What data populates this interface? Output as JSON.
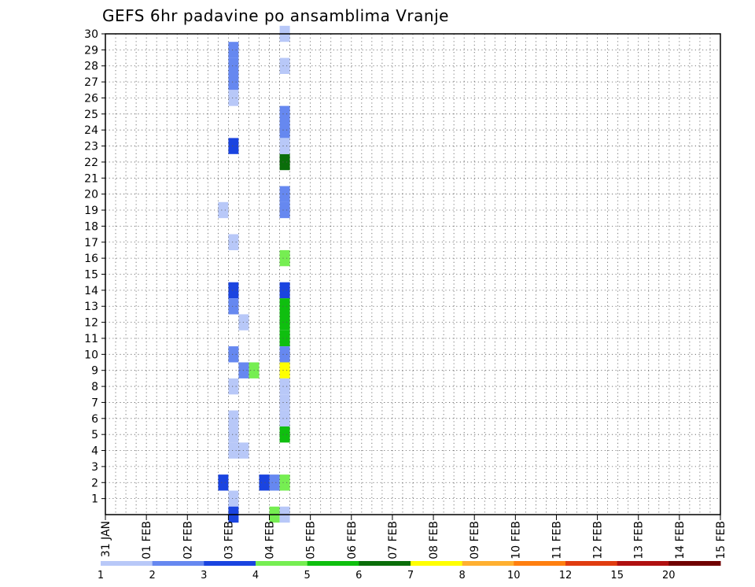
{
  "chart_data": {
    "type": "heatmap",
    "title": "GEFS 6hr padavine po ansamblima Vranje",
    "xlabel": "",
    "ylabel": "",
    "x_ticks": [
      "31 JAN",
      "01 FEB",
      "02 FEB",
      "03 FEB",
      "04 FEB",
      "05 FEB",
      "06 FEB",
      "07 FEB",
      "08 FEB",
      "09 FEB",
      "10 FEB",
      "11 FEB",
      "12 FEB",
      "13 FEB",
      "14 FEB",
      "15 FEB"
    ],
    "xlim": [
      "31 JAN 00",
      "15 FEB 00"
    ],
    "y_ticks": [
      1,
      2,
      3,
      4,
      5,
      6,
      7,
      8,
      9,
      10,
      11,
      12,
      13,
      14,
      15,
      16,
      17,
      18,
      19,
      20,
      21,
      22,
      23,
      24,
      25,
      26,
      27,
      28,
      29,
      30
    ],
    "ylim": [
      0,
      30
    ],
    "time_step_hours": 6,
    "grid": true,
    "colorbar": {
      "labels": [
        "1",
        "2",
        "3",
        "4",
        "5",
        "6",
        "7",
        "8",
        "10",
        "12",
        "15",
        "20"
      ],
      "colors": [
        "#b8c8f8",
        "#6688f0",
        "#1a44e0",
        "#76ee52",
        "#0fbf0f",
        "#0a6e0a",
        "#ffff00",
        "#ffb030",
        "#ff7f10",
        "#e03c10",
        "#b01010",
        "#700000"
      ]
    },
    "cells": [
      {
        "x": "03 FEB 00",
        "y": 29,
        "v": 2
      },
      {
        "x": "03 FEB 00",
        "y": 28,
        "v": 2
      },
      {
        "x": "03 FEB 00",
        "y": 27,
        "v": 2
      },
      {
        "x": "03 FEB 00",
        "y": 26,
        "v": 1
      },
      {
        "x": "03 FEB 00",
        "y": 23,
        "v": 3
      },
      {
        "x": "03 FEB 00",
        "y": 17,
        "v": 1
      },
      {
        "x": "03 FEB 00",
        "y": 14,
        "v": 3
      },
      {
        "x": "03 FEB 00",
        "y": 13,
        "v": 2
      },
      {
        "x": "03 FEB 00",
        "y": 10,
        "v": 2
      },
      {
        "x": "03 FEB 00",
        "y": 8,
        "v": 1
      },
      {
        "x": "03 FEB 00",
        "y": 6,
        "v": 1
      },
      {
        "x": "03 FEB 00",
        "y": 5,
        "v": 1
      },
      {
        "x": "03 FEB 00",
        "y": 4,
        "v": 1
      },
      {
        "x": "03 FEB 00",
        "y": 1,
        "v": 1
      },
      {
        "x": "03 FEB 00",
        "y": 0,
        "v": 3
      },
      {
        "x": "02 FEB 18",
        "y": 19,
        "v": 1
      },
      {
        "x": "02 FEB 18",
        "y": 2,
        "v": 3
      },
      {
        "x": "03 FEB 06",
        "y": 12,
        "v": 1
      },
      {
        "x": "03 FEB 06",
        "y": 9,
        "v": 2
      },
      {
        "x": "03 FEB 06",
        "y": 4,
        "v": 1
      },
      {
        "x": "03 FEB 12",
        "y": 9,
        "v": 4
      },
      {
        "x": "03 FEB 18",
        "y": 2,
        "v": 3
      },
      {
        "x": "04 FEB 00",
        "y": 2,
        "v": 2
      },
      {
        "x": "04 FEB 00",
        "y": 0,
        "v": 4
      },
      {
        "x": "04 FEB 06",
        "y": 30,
        "v": 1
      },
      {
        "x": "04 FEB 06",
        "y": 28,
        "v": 1
      },
      {
        "x": "04 FEB 06",
        "y": 25,
        "v": 2
      },
      {
        "x": "04 FEB 06",
        "y": 24,
        "v": 2
      },
      {
        "x": "04 FEB 06",
        "y": 22,
        "v": 6
      },
      {
        "x": "04 FEB 06",
        "y": 23,
        "v": 1
      },
      {
        "x": "04 FEB 06",
        "y": 19,
        "v": 2
      },
      {
        "x": "04 FEB 06",
        "y": 20,
        "v": 2
      },
      {
        "x": "04 FEB 06",
        "y": 16,
        "v": 4
      },
      {
        "x": "04 FEB 06",
        "y": 14,
        "v": 3
      },
      {
        "x": "04 FEB 06",
        "y": 12,
        "v": 5
      },
      {
        "x": "04 FEB 06",
        "y": 11,
        "v": 5
      },
      {
        "x": "04 FEB 06",
        "y": 13,
        "v": 5
      },
      {
        "x": "04 FEB 06",
        "y": 10,
        "v": 2
      },
      {
        "x": "04 FEB 06",
        "y": 9,
        "v": 7
      },
      {
        "x": "04 FEB 06",
        "y": 7,
        "v": 1
      },
      {
        "x": "04 FEB 06",
        "y": 6,
        "v": 1
      },
      {
        "x": "04 FEB 06",
        "y": 8,
        "v": 1
      },
      {
        "x": "04 FEB 06",
        "y": 5,
        "v": 5
      },
      {
        "x": "04 FEB 06",
        "y": 2,
        "v": 4
      },
      {
        "x": "04 FEB 06",
        "y": 0,
        "v": 1
      }
    ],
    "annotations": []
  }
}
